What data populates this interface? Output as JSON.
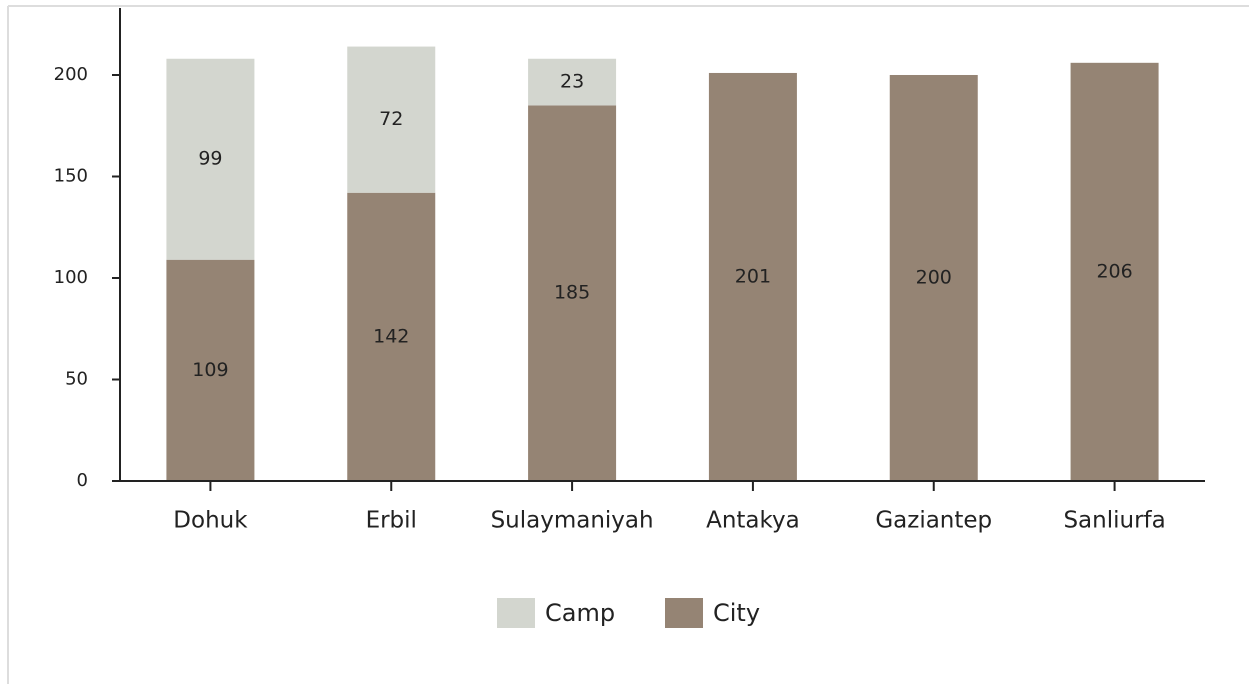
{
  "chart_data": {
    "type": "stacked_bar",
    "categories": [
      "Dohuk",
      "Erbil",
      "Sulaymaniyah",
      "Antakya",
      "Gaziantep",
      "Sanliurfa"
    ],
    "series": [
      {
        "name": "Camp",
        "color": "#d3d6cf",
        "values": [
          99,
          72,
          23,
          null,
          null,
          null
        ]
      },
      {
        "name": "City",
        "color": "#958474",
        "values": [
          109,
          142,
          185,
          201,
          200,
          206
        ]
      }
    ],
    "ylim": [
      0,
      233
    ],
    "yticks": [
      0,
      50,
      100,
      150,
      200
    ],
    "grid": false,
    "legend": "bottom"
  }
}
